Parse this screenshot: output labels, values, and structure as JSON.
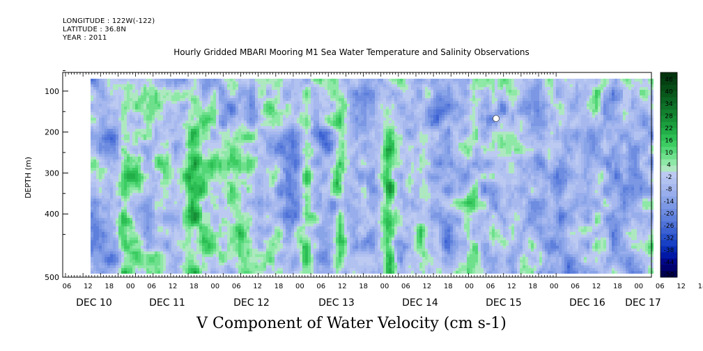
{
  "header": {
    "longitude": "LONGITUDE : 122W(-122)",
    "latitude": "LATITUDE : 36.8N",
    "year": "YEAR : 2011"
  },
  "title": "Hourly Gridded MBARI Mooring M1 Sea Water Temperature and Salinity Observations",
  "footer_label": "V Component of Water Velocity (cm s-1)",
  "chart_data": {
    "type": "heatmap",
    "title": "Hourly Gridded MBARI Mooring M1 Sea Water Temperature and Salinity Observations",
    "xlabel": "",
    "ylabel": "DEPTH (m)",
    "variable": "V Component of Water Velocity (cm s-1)",
    "y_axis": {
      "ticks": [
        100,
        200,
        300,
        400,
        500
      ],
      "range": [
        20,
        500
      ],
      "inverted": true
    },
    "x_axis": {
      "hour_ticks": [
        "06",
        "12",
        "18",
        "00",
        "06",
        "12",
        "18",
        "00",
        "06",
        "12",
        "18",
        "00",
        "06",
        "12",
        "18",
        "00",
        "06",
        "12",
        "18",
        "00",
        "06",
        "12",
        "18",
        "00",
        "06",
        "12",
        "18",
        "00",
        "06",
        "12",
        "18",
        "00"
      ],
      "day_labels": [
        "DEC 10",
        "DEC 11",
        "DEC 12",
        "DEC 13",
        "DEC 14",
        "DEC 15",
        "DEC 16",
        "DEC 17"
      ]
    },
    "colorbar": {
      "labels": [
        "46",
        "40",
        "34",
        "28",
        "22",
        "16",
        "10",
        "4",
        "-2",
        "-8",
        "-14",
        "-20",
        "-26",
        "-32",
        "-38",
        "-44",
        "-50"
      ],
      "levels": [
        -50,
        -47,
        -44,
        -41,
        -38,
        -35,
        -32,
        -29,
        -26,
        -23,
        -20,
        -17,
        -14,
        -11,
        -8,
        -5,
        -2,
        1,
        4,
        7,
        10,
        13,
        16,
        19,
        22,
        25,
        28,
        31,
        34,
        37,
        40,
        43,
        46,
        49
      ],
      "colors": [
        "#000050",
        "#00006e",
        "#00088c",
        "#0018a6",
        "#0a2eb8",
        "#1840c4",
        "#2a52cc",
        "#3c62d2",
        "#4e72d8",
        "#5e80dc",
        "#6e8ce0",
        "#7c98e4",
        "#8aa4e8",
        "#98aeec",
        "#a6b8ee",
        "#b2c2f0",
        "#bccaf2",
        "#aee8c0",
        "#8ee8a6",
        "#6ee08c",
        "#52d676",
        "#3ccc62",
        "#2cbe54",
        "#22ae48",
        "#1c9e3e",
        "#168e36",
        "#12802e",
        "#0e7228",
        "#0a6422",
        "#08581c",
        "#064c16",
        "#044012",
        "#03340e"
      ]
    },
    "depth_rows": [
      20,
      60,
      100,
      140,
      180,
      220,
      260,
      300,
      340,
      380,
      420,
      460,
      490
    ],
    "missing_point": {
      "hour": 115,
      "depth": 167
    },
    "grid": false,
    "legend": "colorbar right"
  }
}
